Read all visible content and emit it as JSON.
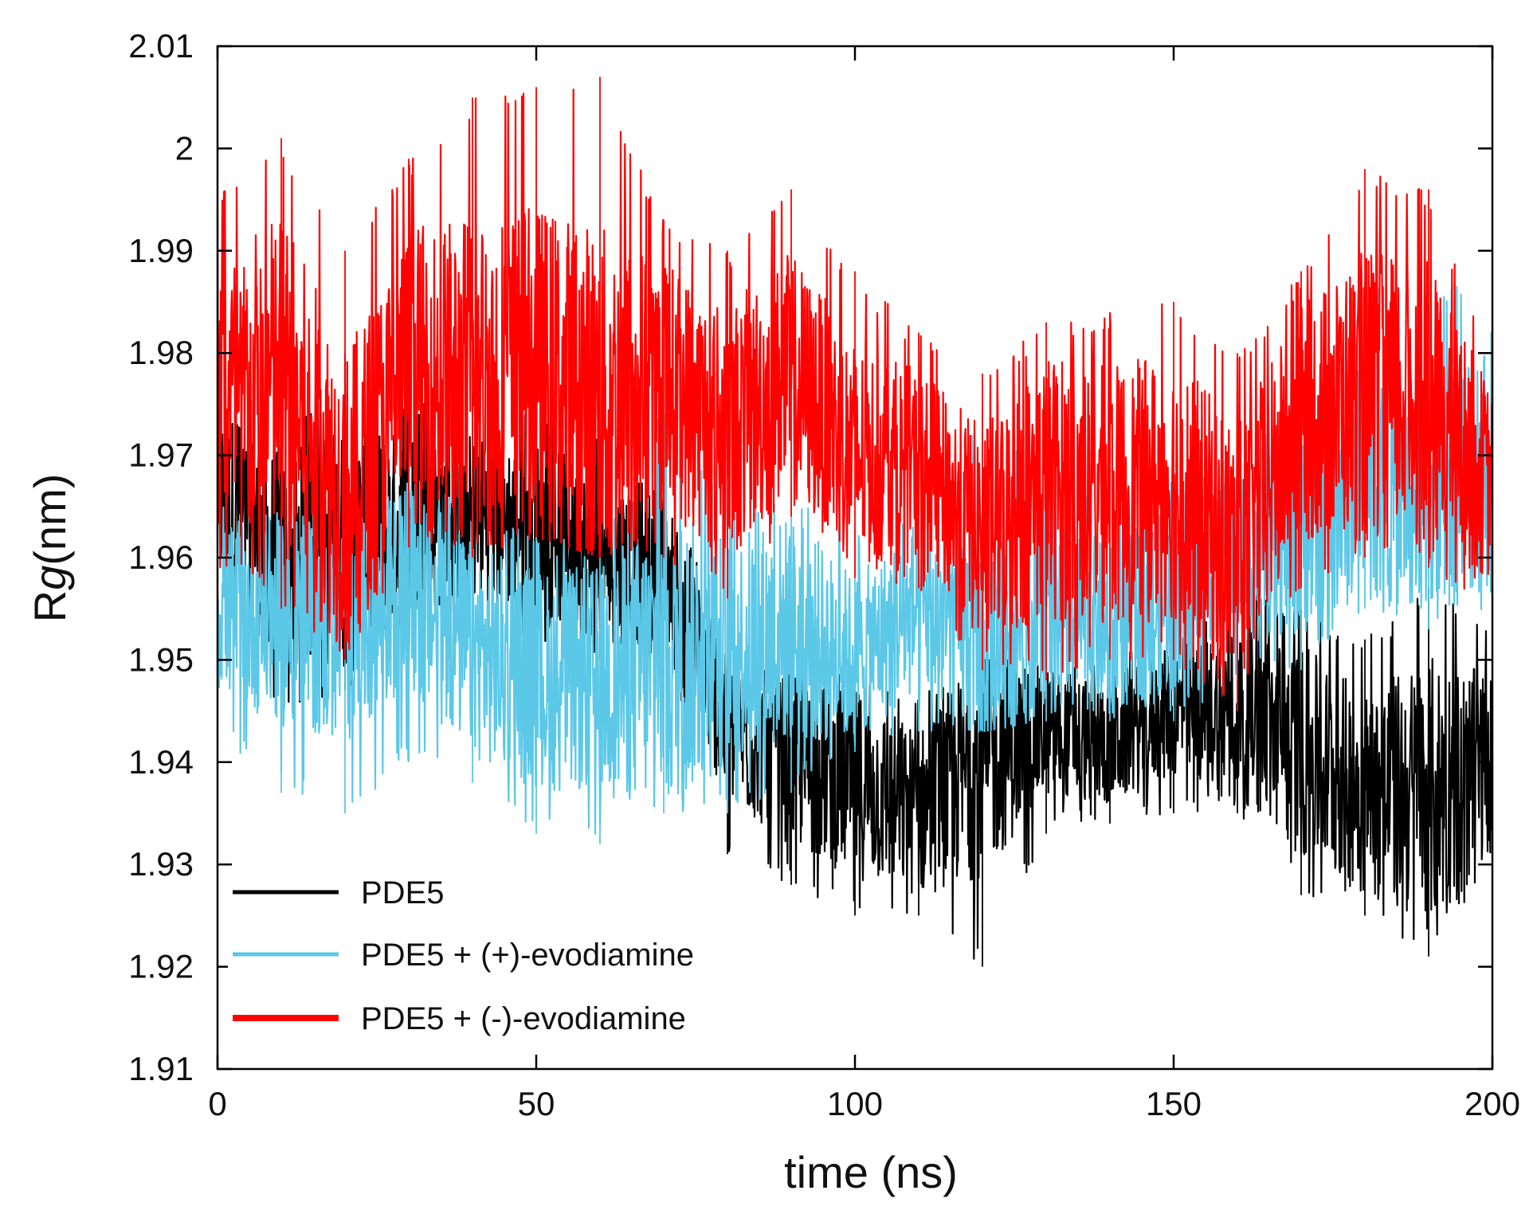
{
  "chart_data": {
    "type": "line",
    "title": "",
    "xlabel": "time (ns)",
    "ylabel_main": "R",
    "ylabel_italic": "g",
    "ylabel_unit": "(nm)",
    "xlim": [
      0,
      200
    ],
    "ylim": [
      1.91,
      2.01
    ],
    "x_ticks": [
      0,
      50,
      100,
      150,
      200
    ],
    "x_tick_labels": [
      "0",
      "50",
      "100",
      "150",
      "200"
    ],
    "y_ticks": [
      1.91,
      1.92,
      1.93,
      1.94,
      1.95,
      1.96,
      1.97,
      1.98,
      1.99,
      2.0,
      2.01
    ],
    "y_tick_labels": [
      "1.91",
      "1.92",
      "1.93",
      "1.94",
      "1.95",
      "1.96",
      "1.97",
      "1.98",
      "1.99",
      "2",
      "2.01"
    ],
    "grid": false,
    "legend_position": "bottom-left",
    "series": [
      {
        "name": "PDE5",
        "color": "#000000",
        "x": [
          0,
          10,
          20,
          30,
          40,
          50,
          60,
          70,
          80,
          90,
          100,
          110,
          120,
          130,
          140,
          150,
          160,
          170,
          180,
          190,
          200
        ],
        "mean": [
          1.966,
          1.96,
          1.961,
          1.963,
          1.964,
          1.963,
          1.96,
          1.959,
          1.943,
          1.94,
          1.938,
          1.935,
          1.94,
          1.943,
          1.942,
          1.945,
          1.945,
          1.941,
          1.937,
          1.937,
          1.94
        ],
        "min": [
          1.95,
          1.945,
          1.947,
          1.95,
          1.954,
          1.952,
          1.95,
          1.949,
          1.931,
          1.928,
          1.925,
          1.925,
          1.92,
          1.933,
          1.934,
          1.935,
          1.935,
          1.927,
          1.925,
          1.921,
          1.93
        ],
        "max": [
          1.975,
          1.972,
          1.98,
          1.975,
          1.976,
          1.975,
          1.972,
          1.97,
          1.95,
          1.95,
          1.95,
          1.947,
          1.95,
          1.95,
          1.951,
          1.952,
          1.957,
          1.955,
          1.952,
          1.957,
          1.953
        ]
      },
      {
        "name": "PDE5 + (+)-evodiamine",
        "color": "#5bc8e8",
        "x": [
          0,
          10,
          20,
          30,
          40,
          50,
          60,
          70,
          80,
          90,
          100,
          110,
          120,
          130,
          140,
          150,
          160,
          170,
          180,
          190,
          200
        ],
        "mean": [
          1.955,
          1.954,
          1.952,
          1.957,
          1.951,
          1.948,
          1.948,
          1.95,
          1.951,
          1.953,
          1.95,
          1.955,
          1.952,
          1.955,
          1.953,
          1.956,
          1.96,
          1.962,
          1.968,
          1.966,
          1.97
        ],
        "min": [
          1.943,
          1.937,
          1.935,
          1.94,
          1.938,
          1.933,
          1.932,
          1.935,
          1.935,
          1.937,
          1.941,
          1.943,
          1.943,
          1.944,
          1.944,
          1.944,
          1.948,
          1.949,
          1.955,
          1.953,
          1.955
        ],
        "max": [
          1.965,
          1.965,
          1.963,
          1.968,
          1.966,
          1.962,
          1.962,
          1.975,
          1.965,
          1.967,
          1.963,
          1.965,
          1.974,
          1.97,
          1.966,
          1.968,
          1.97,
          1.975,
          1.987,
          1.985,
          1.99
        ]
      },
      {
        "name": "PDE5 + (-)-evodiamine",
        "color": "#ff0000",
        "x": [
          0,
          10,
          20,
          30,
          40,
          50,
          60,
          70,
          80,
          90,
          100,
          110,
          120,
          130,
          140,
          150,
          160,
          170,
          180,
          190,
          200
        ],
        "mean": [
          1.975,
          1.977,
          1.965,
          1.978,
          1.977,
          1.978,
          1.975,
          1.977,
          1.972,
          1.978,
          1.97,
          1.969,
          1.962,
          1.967,
          1.966,
          1.967,
          1.96,
          1.973,
          1.976,
          1.975,
          1.967
        ],
        "min": [
          1.959,
          1.955,
          1.95,
          1.961,
          1.96,
          1.962,
          1.96,
          1.96,
          1.956,
          1.964,
          1.958,
          1.957,
          1.949,
          1.948,
          1.95,
          1.95,
          1.945,
          1.957,
          1.96,
          1.959,
          1.955
        ],
        "max": [
          1.996,
          2.001,
          1.99,
          1.999,
          2.005,
          2.006,
          2.007,
          1.993,
          1.99,
          1.996,
          1.988,
          1.982,
          1.978,
          1.983,
          1.984,
          1.985,
          1.98,
          1.988,
          1.998,
          1.996,
          1.98
        ]
      }
    ]
  }
}
